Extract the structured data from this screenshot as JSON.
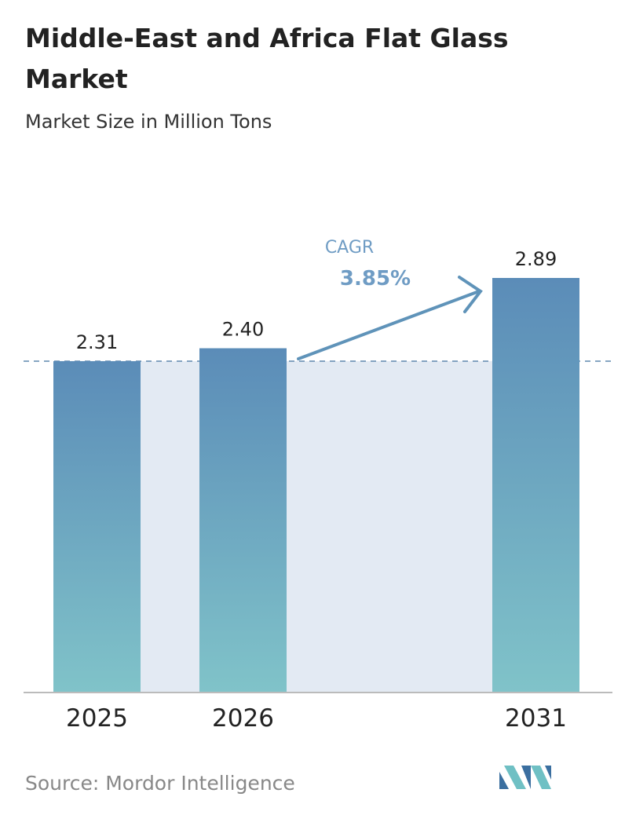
{
  "chart_data": {
    "type": "bar",
    "title_lines": [
      "Middle-East and Africa Flat Glass",
      "Market"
    ],
    "subtitle": "Market Size in Million Tons",
    "categories": [
      "2025",
      "2026",
      "2031"
    ],
    "values": [
      2.31,
      2.4,
      2.89
    ],
    "value_labels": [
      "2.31",
      "2.40",
      "2.89"
    ],
    "annotation": {
      "label": "CAGR",
      "value": "3.85%"
    },
    "source": "Source:  Mordor Intelligence"
  }
}
